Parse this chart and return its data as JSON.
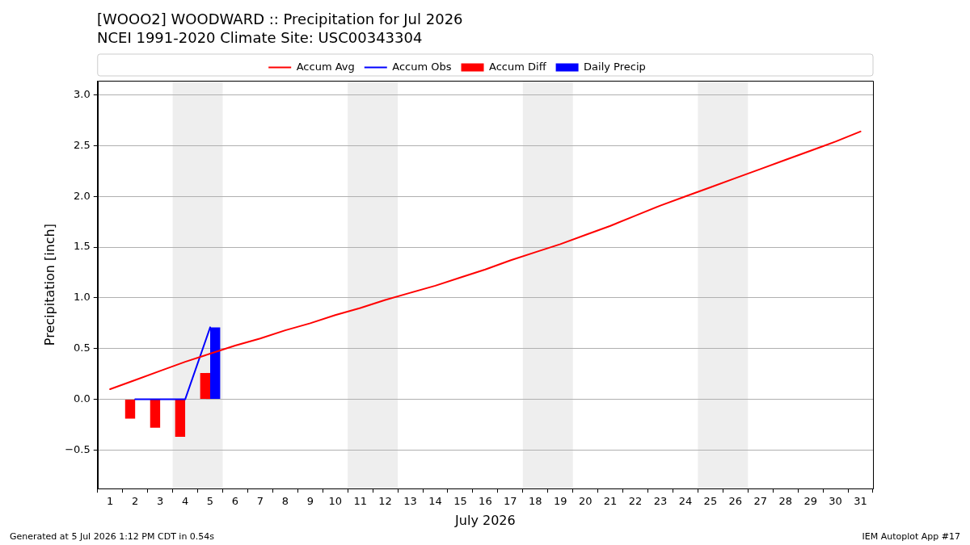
{
  "chart_data": {
    "type": "line",
    "title": "[WOOO2] WOODWARD :: Precipitation for Jul 2026",
    "subtitle": "NCEI 1991-2020 Climate Site: USC00343304",
    "xlabel": "July 2026",
    "ylabel": "Precipitation [inch]",
    "series": [
      {
        "name": "Accum Avg",
        "color": "#ff0000",
        "x": [
          1,
          2,
          3,
          4,
          5,
          6,
          7,
          8,
          9,
          10,
          11,
          12,
          13,
          14,
          15,
          16,
          17,
          18,
          19,
          20,
          21,
          22,
          23,
          24,
          25,
          26,
          27,
          28,
          29,
          30,
          31
        ],
        "values": [
          0.1,
          0.19,
          0.28,
          0.37,
          0.45,
          0.53,
          0.6,
          0.68,
          0.75,
          0.83,
          0.9,
          0.98,
          1.05,
          1.12,
          1.2,
          1.28,
          1.37,
          1.45,
          1.53,
          1.62,
          1.71,
          1.81,
          1.91,
          2.0,
          2.09,
          2.18,
          2.27,
          2.36,
          2.45,
          2.54,
          2.64
        ]
      },
      {
        "name": "Accum Obs",
        "color": "#0000ff",
        "x": [
          2,
          3,
          4,
          5
        ],
        "values": [
          0.0,
          0.0,
          0.0,
          0.71
        ]
      },
      {
        "name": "Accum Diff",
        "type": "bar",
        "color": "#ff0000",
        "x": [
          2,
          3,
          4,
          5
        ],
        "values": [
          -0.19,
          -0.28,
          -0.37,
          0.26
        ]
      },
      {
        "name": "Daily Precip",
        "type": "bar",
        "color": "#0000ff",
        "x": [
          5
        ],
        "values": [
          0.71
        ]
      }
    ],
    "xlim": [
      0.5,
      31.5
    ],
    "xticks": [
      1,
      2,
      3,
      4,
      5,
      6,
      7,
      8,
      9,
      10,
      11,
      12,
      13,
      14,
      15,
      16,
      17,
      18,
      19,
      20,
      21,
      22,
      23,
      24,
      25,
      26,
      27,
      28,
      29,
      30,
      31
    ],
    "ylim": [
      -0.88,
      3.14
    ],
    "yticks": [
      {
        "value": -0.5,
        "label": "−0.5"
      },
      {
        "value": 0,
        "label": "0.0"
      },
      {
        "value": 0.5,
        "label": "0.5"
      },
      {
        "value": 1,
        "label": "1.0"
      },
      {
        "value": 1.5,
        "label": "1.5"
      },
      {
        "value": 2,
        "label": "2.0"
      },
      {
        "value": 2.5,
        "label": "2.5"
      },
      {
        "value": 3,
        "label": "3.0"
      }
    ],
    "bands": [
      {
        "axis": "x",
        "from": 3.5,
        "to": 5.5,
        "color": "#eeeeee"
      },
      {
        "axis": "x",
        "from": 10.5,
        "to": 12.5,
        "color": "#eeeeee"
      },
      {
        "axis": "x",
        "from": 17.5,
        "to": 19.5,
        "color": "#eeeeee"
      },
      {
        "axis": "x",
        "from": 24.5,
        "to": 26.5,
        "color": "#eeeeee"
      }
    ],
    "grid": "y",
    "legend": "top",
    "annotations": [
      "Generated at 5 Jul 2026 1:12 PM CDT in 0.54s",
      "IEM Autoplot App #17"
    ]
  }
}
